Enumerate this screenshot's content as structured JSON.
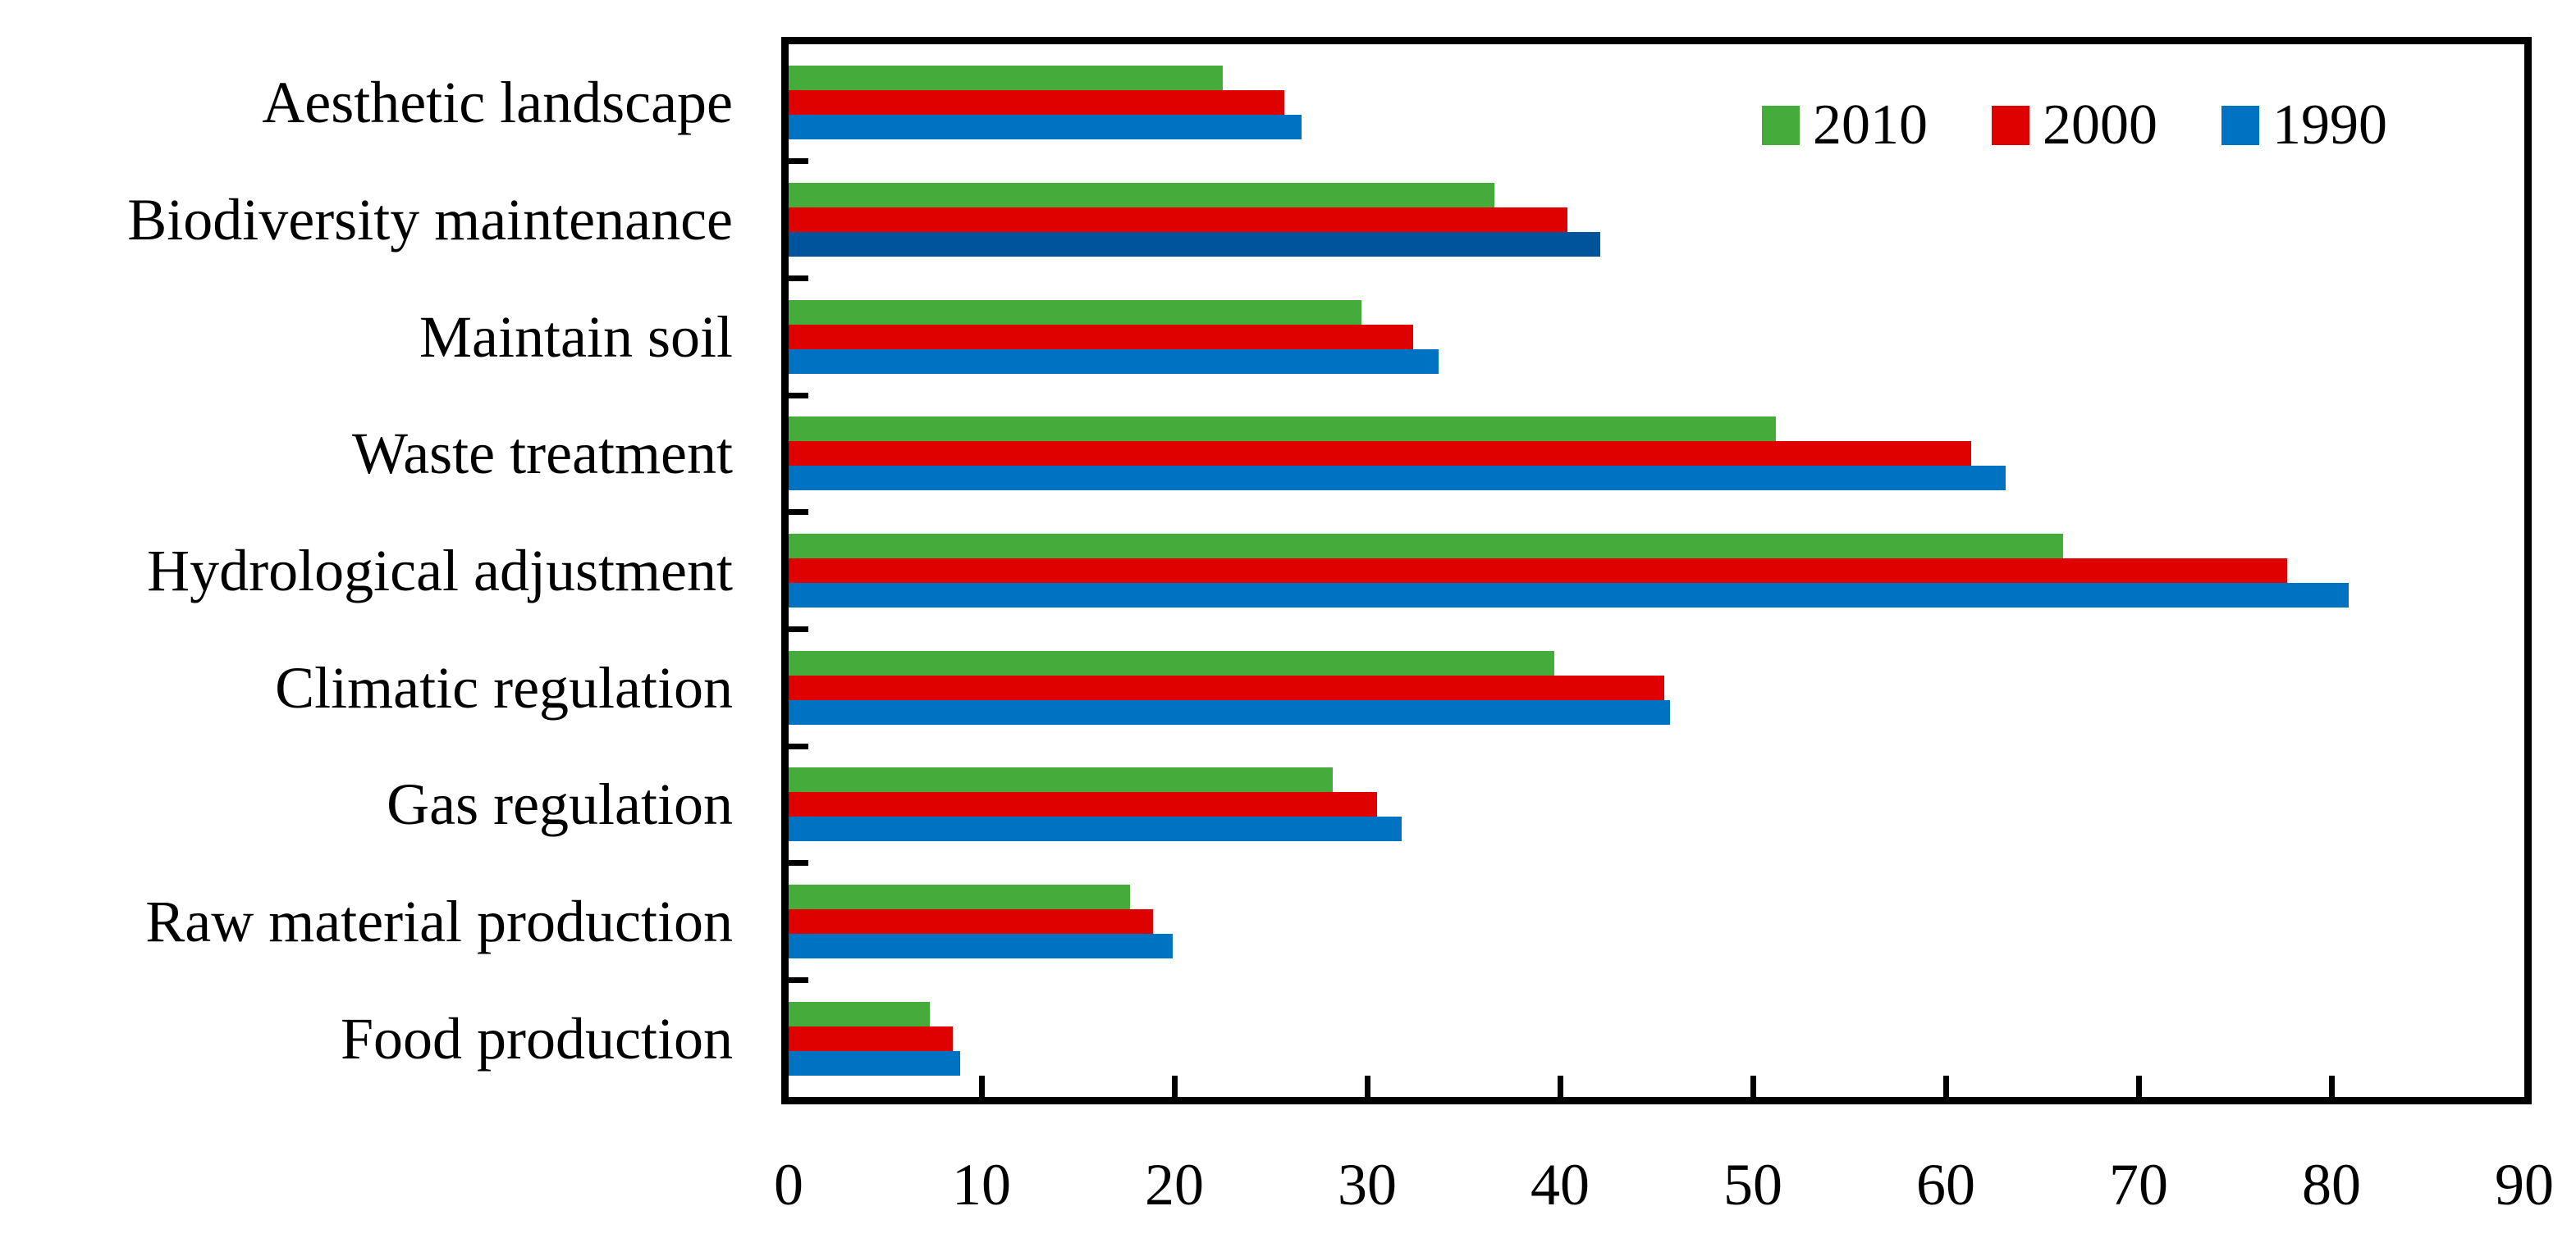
{
  "chart_data": {
    "type": "bar",
    "orientation": "horizontal",
    "categories": [
      "Aesthetic landscape",
      "Biodiversity maintenance",
      "Maintain soil",
      "Waste treatment",
      "Hydrological adjustment",
      "Climatic regulation",
      "Gas regulation",
      "Raw material production",
      "Food production"
    ],
    "series": [
      {
        "name": "2010",
        "color": "#45AC3C",
        "values": [
          22.5,
          36.6,
          29.7,
          51.2,
          66.1,
          39.7,
          28.2,
          17.7,
          7.3
        ]
      },
      {
        "name": "2000",
        "color": "#DF0000",
        "values": [
          25.7,
          40.4,
          32.4,
          61.3,
          77.7,
          45.4,
          30.5,
          18.9,
          8.5
        ]
      },
      {
        "name": "1990",
        "color": "#0072C2",
        "values": [
          26.6,
          42.1,
          33.7,
          63.1,
          80.9,
          45.7,
          31.8,
          19.9,
          8.9
        ]
      }
    ],
    "bar_color_overrides": [
      {
        "series": "1990",
        "category": "Biodiversity maintenance",
        "color": "#00549C"
      }
    ],
    "title": "",
    "xlabel": "",
    "ylabel": "",
    "xlim": [
      0,
      90
    ],
    "xticks": [
      0,
      10,
      20,
      30,
      40,
      50,
      60,
      70,
      80,
      90
    ],
    "grid": false,
    "legend_position": "top-right-inside",
    "legend_order": [
      "2010",
      "2000",
      "1990"
    ],
    "axis_color": "#000000",
    "background_color": "#ffffff"
  }
}
